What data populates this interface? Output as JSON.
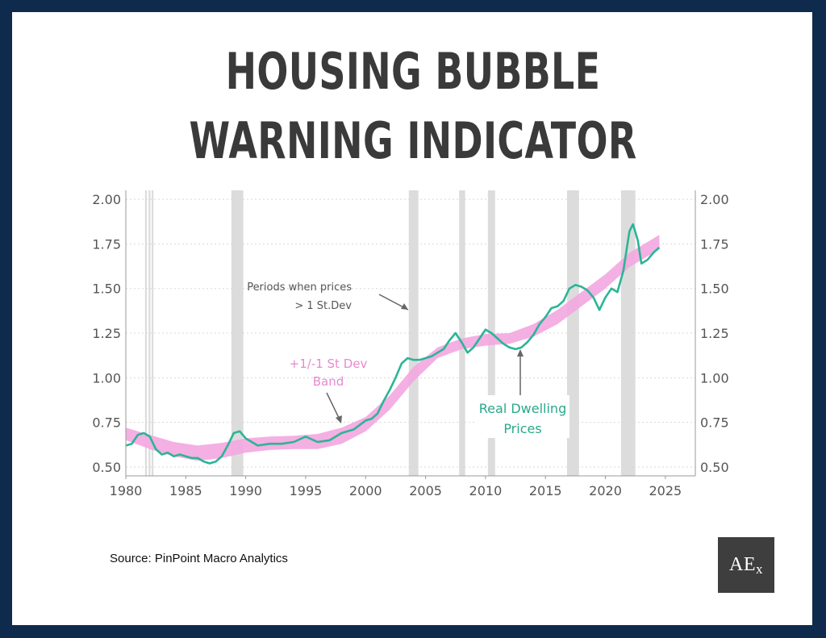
{
  "title_line1": "HOUSING BUBBLE",
  "title_line2": "WARNING INDICATOR",
  "source": "Source: PinPoint Macro Analytics",
  "logo": {
    "main": "AE",
    "sub": "x"
  },
  "colors": {
    "frame": "#0e2a4c",
    "series": "#2bb596",
    "band": "#f3a6e0",
    "shading": "#dcdcdc",
    "band_label": "#e68ad0",
    "series_label": "#2aa889"
  },
  "chart_data": {
    "type": "line",
    "title": "",
    "xlabel": "",
    "ylabel": "",
    "xlim": [
      1980,
      2027.5
    ],
    "ylim": [
      0.45,
      2.05
    ],
    "x_ticks": [
      1980,
      1985,
      1990,
      1995,
      2000,
      2005,
      2010,
      2015,
      2020,
      2025
    ],
    "y_ticks": [
      0.5,
      0.75,
      1.0,
      1.25,
      1.5,
      1.75,
      2.0
    ],
    "y_tick_labels": [
      "0.50",
      "0.75",
      "1.00",
      "1.25",
      "1.50",
      "1.75",
      "2.00"
    ],
    "right_axis_labels": true,
    "grid": "horizontal dotted",
    "shaded_periods": [
      [
        1981.6,
        1981.75
      ],
      [
        1981.9,
        1982.05
      ],
      [
        1982.15,
        1982.3
      ],
      [
        1988.8,
        1989.8
      ],
      [
        2003.6,
        2004.4
      ],
      [
        2007.8,
        2008.3
      ],
      [
        2010.2,
        2010.8
      ],
      [
        2016.8,
        2017.8
      ],
      [
        2021.3,
        2022.5
      ]
    ],
    "band": {
      "name": "+1/-1 St Dev Band",
      "x": [
        1980,
        1982,
        1984,
        1986,
        1988,
        1990,
        1992,
        1994,
        1996,
        1998,
        2000,
        2002,
        2004,
        2006,
        2008,
        2010,
        2012,
        2014,
        2016,
        2018,
        2020,
        2022,
        2024.5
      ],
      "upper": [
        0.72,
        0.68,
        0.64,
        0.62,
        0.635,
        0.66,
        0.67,
        0.675,
        0.685,
        0.72,
        0.78,
        0.9,
        1.06,
        1.17,
        1.22,
        1.245,
        1.25,
        1.3,
        1.38,
        1.48,
        1.58,
        1.7,
        1.8
      ],
      "lower": [
        0.65,
        0.6,
        0.56,
        0.535,
        0.55,
        0.58,
        0.595,
        0.6,
        0.6,
        0.63,
        0.7,
        0.82,
        0.98,
        1.11,
        1.16,
        1.18,
        1.19,
        1.23,
        1.3,
        1.4,
        1.5,
        1.62,
        1.72
      ]
    },
    "series": [
      {
        "name": "Real Dwelling Prices",
        "x": [
          1980,
          1980.5,
          1981,
          1981.5,
          1982,
          1982.5,
          1983,
          1983.5,
          1984,
          1984.5,
          1985,
          1985.5,
          1986,
          1986.5,
          1987,
          1987.5,
          1988,
          1988.5,
          1989,
          1989.5,
          1990,
          1990.5,
          1991,
          1992,
          1993,
          1994,
          1995,
          1996,
          1997,
          1998,
          1999,
          2000,
          2000.5,
          2001,
          2001.5,
          2002,
          2002.5,
          2003,
          2003.5,
          2004,
          2004.5,
          2005,
          2005.5,
          2006,
          2006.5,
          2007,
          2007.5,
          2008,
          2008.5,
          2009,
          2009.5,
          2010,
          2010.5,
          2011,
          2011.5,
          2012,
          2012.5,
          2013,
          2013.5,
          2014,
          2014.5,
          2015,
          2015.5,
          2016,
          2016.5,
          2017,
          2017.5,
          2018,
          2018.5,
          2019,
          2019.5,
          2020,
          2020.5,
          2021,
          2021.5,
          2022,
          2022.3,
          2022.7,
          2023,
          2023.5,
          2024,
          2024.5
        ],
        "y": [
          0.62,
          0.63,
          0.68,
          0.69,
          0.67,
          0.6,
          0.57,
          0.58,
          0.56,
          0.57,
          0.56,
          0.55,
          0.55,
          0.53,
          0.52,
          0.53,
          0.56,
          0.62,
          0.69,
          0.7,
          0.66,
          0.64,
          0.62,
          0.63,
          0.63,
          0.64,
          0.67,
          0.64,
          0.65,
          0.69,
          0.71,
          0.76,
          0.77,
          0.8,
          0.87,
          0.93,
          1.0,
          1.08,
          1.11,
          1.1,
          1.1,
          1.11,
          1.12,
          1.14,
          1.16,
          1.21,
          1.25,
          1.2,
          1.14,
          1.17,
          1.22,
          1.27,
          1.25,
          1.22,
          1.19,
          1.17,
          1.16,
          1.17,
          1.2,
          1.24,
          1.3,
          1.34,
          1.39,
          1.4,
          1.43,
          1.5,
          1.52,
          1.51,
          1.49,
          1.45,
          1.38,
          1.45,
          1.5,
          1.48,
          1.6,
          1.82,
          1.86,
          1.77,
          1.64,
          1.66,
          1.7,
          1.73
        ]
      }
    ],
    "annotations": {
      "shading_note_line1": "Periods when prices",
      "shading_note_line2": "> 1 St.Dev",
      "band_label_line1": "+1/-1 St Dev",
      "band_label_line2": "Band",
      "series_label_line1": "Real Dwelling",
      "series_label_line2": "Prices"
    }
  }
}
